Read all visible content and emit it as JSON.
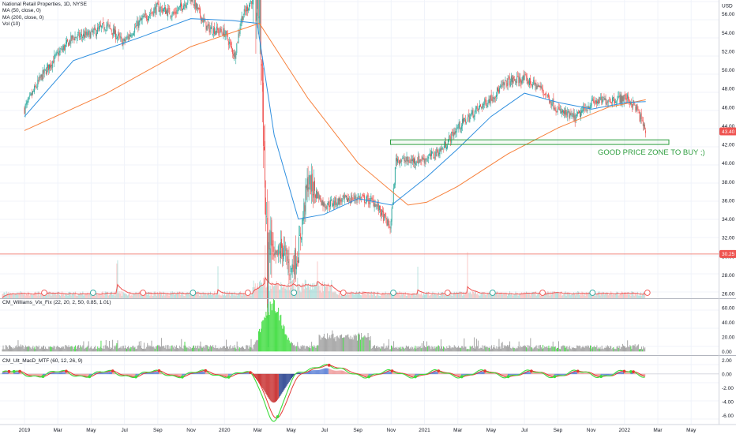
{
  "header": {
    "symbol_line": "National Retail Properties, 1D, NYSE",
    "ma50_label": "MA (50, close, 0)",
    "ma200_label": "MA (200, close, 0)",
    "vol_label": "Vol (10)",
    "currency": "USD"
  },
  "indicators": {
    "vix_label": "CM_Williams_Vix_Fix (22, 20, 2, 50, 0.85, 1.01)",
    "macd_label": "CM_Ult_MacD_MTF (60, 12, 26, 9)"
  },
  "annotation": {
    "text": "GOOD PRICE ZONE TO BUY ;)"
  },
  "badges": {
    "last_price": "43.40",
    "hline_price": "30.25"
  },
  "colors": {
    "ma50": "#2f8fdf",
    "ma200": "#f7813c",
    "zone": "#2e9e3f",
    "up": "#26a69a",
    "down": "#ef5350",
    "hline": "#f28b82",
    "vix_hi": "#3cdc3c",
    "vix_lo": "#9e9e9e"
  },
  "chart_data": [
    {
      "type": "candlestick",
      "title": "National Retail Properties, 1D, NYSE",
      "ylim": [
        25.5,
        57.5
      ],
      "y_ticks": [
        "56.00",
        "54.00",
        "52.00",
        "50.00",
        "48.00",
        "46.00",
        "44.00",
        "42.00",
        "40.00",
        "38.00",
        "36.00",
        "34.00",
        "32.00",
        "30.00",
        "28.00",
        "26.00"
      ],
      "x_ticks": [
        "2019",
        "Mar",
        "May",
        "Jul",
        "Sep",
        "Nov",
        "2020",
        "Mar",
        "May",
        "Jul",
        "Sep",
        "Nov",
        "2021",
        "Mar",
        "May",
        "Jul",
        "Sep",
        "Nov",
        "2022",
        "Mar",
        "May"
      ],
      "price_path": [
        [
          "2019-01-02",
          45.8
        ],
        [
          "2019-02-01",
          49.2
        ],
        [
          "2019-03-01",
          51.5
        ],
        [
          "2019-04-01",
          53.5
        ],
        [
          "2019-05-01",
          53.8
        ],
        [
          "2019-06-01",
          54.8
        ],
        [
          "2019-07-01",
          52.9
        ],
        [
          "2019-08-01",
          55.2
        ],
        [
          "2019-09-01",
          56.7
        ],
        [
          "2019-10-01",
          56.0
        ],
        [
          "2019-11-01",
          57.8
        ],
        [
          "2019-12-01",
          54.5
        ],
        [
          "2020-01-02",
          54.0
        ],
        [
          "2020-01-20",
          51.5
        ],
        [
          "2020-02-01",
          55.5
        ],
        [
          "2020-02-20",
          57.5
        ],
        [
          "2020-03-05",
          56.8
        ],
        [
          "2020-03-10",
          49.0
        ],
        [
          "2020-03-16",
          36.0
        ],
        [
          "2020-03-20",
          26.6
        ],
        [
          "2020-03-24",
          31.5
        ],
        [
          "2020-04-01",
          29.2
        ],
        [
          "2020-04-15",
          31.0
        ],
        [
          "2020-05-01",
          28.5
        ],
        [
          "2020-05-15",
          30.5
        ],
        [
          "2020-06-01",
          38.0
        ],
        [
          "2020-06-15",
          37.0
        ],
        [
          "2020-07-01",
          35.5
        ],
        [
          "2020-08-01",
          36.0
        ],
        [
          "2020-09-01",
          36.3
        ],
        [
          "2020-10-01",
          35.8
        ],
        [
          "2020-10-30",
          33.0
        ],
        [
          "2020-11-09",
          40.5
        ],
        [
          "2020-12-01",
          40.2
        ],
        [
          "2021-01-04",
          40.5
        ],
        [
          "2021-02-01",
          41.5
        ],
        [
          "2021-03-01",
          43.8
        ],
        [
          "2021-04-01",
          45.5
        ],
        [
          "2021-05-01",
          47.0
        ],
        [
          "2021-06-01",
          48.8
        ],
        [
          "2021-07-01",
          49.0
        ],
        [
          "2021-08-01",
          48.0
        ],
        [
          "2021-09-01",
          45.6
        ],
        [
          "2021-10-01",
          44.8
        ],
        [
          "2021-11-01",
          46.5
        ],
        [
          "2021-12-01",
          46.8
        ],
        [
          "2022-01-03",
          47.0
        ],
        [
          "2022-01-20",
          46.0
        ],
        [
          "2022-02-07",
          43.4
        ]
      ],
      "ma50_path": [
        [
          "2019-01-02",
          45.0
        ],
        [
          "2019-04-01",
          51.0
        ],
        [
          "2019-08-01",
          53.5
        ],
        [
          "2019-11-01",
          55.5
        ],
        [
          "2020-01-15",
          55.3
        ],
        [
          "2020-03-01",
          55.0
        ],
        [
          "2020-04-01",
          43.0
        ],
        [
          "2020-05-15",
          34.0
        ],
        [
          "2020-07-01",
          34.5
        ],
        [
          "2020-09-01",
          36.2
        ],
        [
          "2020-11-01",
          35.5
        ],
        [
          "2021-01-04",
          38.5
        ],
        [
          "2021-03-01",
          41.5
        ],
        [
          "2021-05-01",
          45.0
        ],
        [
          "2021-07-01",
          47.5
        ],
        [
          "2021-09-01",
          46.5
        ],
        [
          "2021-11-01",
          45.8
        ],
        [
          "2022-01-03",
          46.5
        ],
        [
          "2022-02-07",
          46.6
        ]
      ],
      "ma200_path": [
        [
          "2019-01-02",
          43.5
        ],
        [
          "2019-06-01",
          47.5
        ],
        [
          "2019-11-01",
          52.5
        ],
        [
          "2020-03-05",
          55.0
        ],
        [
          "2020-06-01",
          47.0
        ],
        [
          "2020-09-01",
          40.0
        ],
        [
          "2020-12-01",
          35.5
        ],
        [
          "2021-01-04",
          35.8
        ],
        [
          "2021-03-01",
          37.5
        ],
        [
          "2021-06-01",
          41.0
        ],
        [
          "2021-09-01",
          43.8
        ],
        [
          "2021-12-01",
          46.0
        ],
        [
          "2022-02-07",
          46.8
        ]
      ],
      "buy_zone": {
        "start": "2020-11-09",
        "end": "2022-03-01",
        "low": 42.0,
        "high": 42.5
      },
      "hline": 30.25,
      "last_price": 43.4,
      "volume_spike_dates": [
        "2019-06-20",
        "2019-12-20",
        "2020-03-16",
        "2020-06-19",
        "2020-12-18",
        "2021-03-19"
      ]
    },
    {
      "type": "histogram",
      "title": "CM_Williams_Vix_Fix (22, 20, 2, 50, 0.85, 1.01)",
      "ylim": [
        -5,
        72
      ],
      "y_ticks": [
        "60.00",
        "40.00",
        "20.00",
        "0.00"
      ],
      "peak_value": 66,
      "peak_date": "2020-03-20"
    },
    {
      "type": "line",
      "title": "CM_Ult_MacD_MTF (60, 12, 26, 9)",
      "ylim": [
        -7.2,
        2.6
      ],
      "y_ticks": [
        "2.00",
        "0.00",
        "-2.00",
        "-4.00",
        "-6.00"
      ],
      "min_value": -6.3,
      "min_date": "2020-04-01",
      "last_value": -0.6
    }
  ]
}
